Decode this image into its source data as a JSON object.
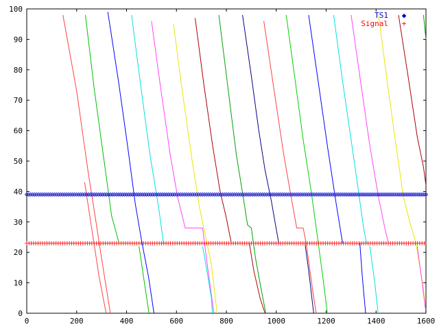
{
  "chart_data": {
    "type": "line",
    "title": "",
    "xlabel": "",
    "ylabel": "",
    "xlim": [
      0,
      1600
    ],
    "ylim": [
      0,
      100
    ],
    "x_ticks": [
      0,
      200,
      400,
      600,
      800,
      1000,
      1200,
      1400,
      1600
    ],
    "y_ticks": [
      0,
      10,
      20,
      30,
      40,
      50,
      60,
      70,
      80,
      90,
      100
    ],
    "grid": false,
    "legend_position": "top-right",
    "legend": [
      {
        "label": "TS1",
        "marker": "◆",
        "color": "#0000cc"
      },
      {
        "label": "Signal",
        "marker": "+",
        "color": "#ff0000"
      }
    ],
    "series": [
      {
        "name": "TS1",
        "style": "points",
        "marker": "diamond",
        "color": "#2020cc",
        "y_constant": 39,
        "x_start": 0,
        "x_end": 1600,
        "x_step": 8
      },
      {
        "name": "Signal",
        "style": "points",
        "marker": "plus",
        "color": "#ff2020",
        "y_constant": 23,
        "x_start": 0,
        "x_end": 1600,
        "x_step": 9
      }
    ],
    "traces": [
      {
        "color": "#ff4040",
        "points": [
          [
            145,
            98
          ],
          [
            200,
            73
          ],
          [
            245,
            47
          ],
          [
            272,
            33
          ],
          [
            300,
            18
          ],
          [
            335,
            0
          ]
        ]
      },
      {
        "color": "#ff4040",
        "points": [
          [
            232,
            43
          ],
          [
            260,
            28
          ],
          [
            290,
            12
          ],
          [
            318,
            0
          ]
        ]
      },
      {
        "color": "#00c000",
        "points": [
          [
            235,
            98
          ],
          [
            270,
            74
          ],
          [
            310,
            50
          ],
          [
            340,
            32
          ],
          [
            370,
            23
          ]
        ]
      },
      {
        "color": "#00c000",
        "points": [
          [
            450,
            22
          ],
          [
            468,
            12
          ],
          [
            490,
            0
          ]
        ]
      },
      {
        "color": "#0000ff",
        "points": [
          [
            325,
            99
          ],
          [
            368,
            76
          ],
          [
            404,
            55
          ],
          [
            435,
            36
          ],
          [
            460,
            24
          ],
          [
            488,
            12
          ],
          [
            510,
            0
          ]
        ]
      },
      {
        "color": "#00e0e0",
        "points": [
          [
            420,
            98
          ],
          [
            458,
            74
          ],
          [
            494,
            52
          ],
          [
            530,
            34
          ],
          [
            548,
            23
          ]
        ]
      },
      {
        "color": "#ff40ff",
        "points": [
          [
            500,
            96
          ],
          [
            535,
            75
          ],
          [
            575,
            52
          ],
          [
            605,
            38
          ],
          [
            635,
            28
          ],
          [
            705,
            28
          ],
          [
            725,
            15
          ],
          [
            750,
            0
          ]
        ]
      },
      {
        "color": "#e8e800",
        "points": [
          [
            588,
            95
          ],
          [
            625,
            72
          ],
          [
            663,
            50
          ],
          [
            692,
            35
          ],
          [
            740,
            16
          ],
          [
            763,
            0
          ]
        ]
      },
      {
        "color": "#00e0e0",
        "points": [
          [
            705,
            22
          ],
          [
            722,
            14
          ],
          [
            740,
            5
          ],
          [
            744,
            0
          ]
        ]
      },
      {
        "color": "#aa0000",
        "points": [
          [
            675,
            97
          ],
          [
            710,
            75
          ],
          [
            745,
            55
          ],
          [
            775,
            40
          ],
          [
            798,
            32
          ],
          [
            820,
            23
          ]
        ]
      },
      {
        "color": "#aa0000",
        "points": [
          [
            892,
            23
          ],
          [
            910,
            14
          ],
          [
            935,
            5
          ],
          [
            955,
            0
          ]
        ]
      },
      {
        "color": "#00a000",
        "points": [
          [
            770,
            98
          ],
          [
            805,
            75
          ],
          [
            840,
            52
          ],
          [
            868,
            38
          ],
          [
            885,
            29
          ],
          [
            900,
            28
          ],
          [
            917,
            18
          ],
          [
            937,
            9
          ],
          [
            958,
            0
          ]
        ]
      },
      {
        "color": "#000080",
        "points": [
          [
            865,
            98
          ],
          [
            900,
            78
          ],
          [
            930,
            60
          ],
          [
            955,
            47
          ],
          [
            980,
            37
          ],
          [
            995,
            30
          ],
          [
            1010,
            23
          ]
        ]
      },
      {
        "color": "#ff4040",
        "points": [
          [
            950,
            96
          ],
          [
            990,
            74
          ],
          [
            1030,
            52
          ],
          [
            1060,
            38
          ],
          [
            1082,
            28
          ],
          [
            1108,
            28
          ],
          [
            1120,
            23
          ],
          [
            1145,
            8
          ],
          [
            1160,
            0
          ]
        ]
      },
      {
        "color": "#00d000",
        "points": [
          [
            1040,
            98
          ],
          [
            1075,
            77
          ],
          [
            1108,
            57
          ],
          [
            1140,
            40
          ],
          [
            1165,
            25
          ],
          [
            1185,
            13
          ],
          [
            1205,
            0
          ]
        ]
      },
      {
        "color": "#000080",
        "points": [
          [
            1115,
            23
          ],
          [
            1130,
            14
          ],
          [
            1150,
            0
          ]
        ]
      },
      {
        "color": "#0000ff",
        "points": [
          [
            1130,
            98
          ],
          [
            1170,
            75
          ],
          [
            1205,
            55
          ],
          [
            1240,
            36
          ],
          [
            1266,
            23
          ]
        ]
      },
      {
        "color": "#0000ff",
        "points": [
          [
            1335,
            23
          ],
          [
            1345,
            12
          ],
          [
            1358,
            0
          ]
        ]
      },
      {
        "color": "#00e0e0",
        "points": [
          [
            1230,
            98
          ],
          [
            1268,
            75
          ],
          [
            1300,
            57
          ],
          [
            1333,
            38
          ],
          [
            1350,
            28
          ],
          [
            1362,
            23
          ]
        ]
      },
      {
        "color": "#00e0e0",
        "points": [
          [
            1375,
            22
          ],
          [
            1395,
            10
          ],
          [
            1408,
            0
          ]
        ]
      },
      {
        "color": "#ff40ff",
        "points": [
          [
            1300,
            98
          ],
          [
            1340,
            75
          ],
          [
            1375,
            55
          ],
          [
            1410,
            38
          ],
          [
            1435,
            28
          ],
          [
            1450,
            23
          ]
        ]
      },
      {
        "color": "#e8e800",
        "points": [
          [
            1410,
            98
          ],
          [
            1445,
            76
          ],
          [
            1480,
            55
          ],
          [
            1510,
            38
          ],
          [
            1535,
            30
          ],
          [
            1560,
            23
          ],
          [
            1590,
            8
          ],
          [
            1600,
            0
          ]
        ]
      },
      {
        "color": "#ff40ff",
        "points": [
          [
            1565,
            22
          ],
          [
            1585,
            10
          ],
          [
            1600,
            0
          ]
        ]
      },
      {
        "color": "#aa0000",
        "points": [
          [
            1490,
            98
          ],
          [
            1530,
            77
          ],
          [
            1565,
            58
          ],
          [
            1590,
            48
          ],
          [
            1600,
            42
          ]
        ]
      },
      {
        "color": "#00a000",
        "points": [
          [
            1590,
            98
          ],
          [
            1600,
            90
          ]
        ]
      }
    ]
  }
}
